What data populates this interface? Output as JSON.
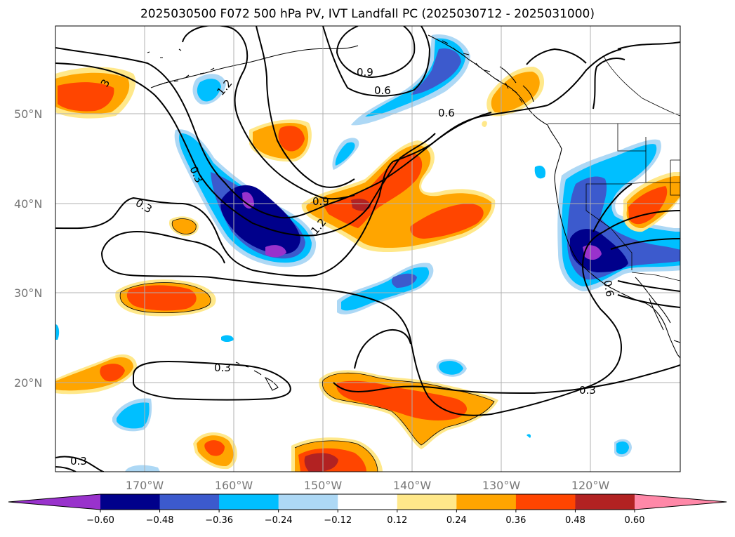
{
  "title": "2025030500 F072 500 hPa PV, IVT Landfall PC (2025030712 - 2025031000)",
  "map": {
    "lat_ticks": [
      "50°N",
      "40°N",
      "30°N",
      "20°N"
    ],
    "lon_ticks": [
      "170°W",
      "160°W",
      "150°W",
      "140°W",
      "130°W",
      "120°W"
    ],
    "grid": true
  },
  "contour_labels": {
    "a": "0.3",
    "b": "0.3",
    "c": "1.2",
    "d": "0.9",
    "e": "0.6",
    "f": "0.6",
    "g": "0.9",
    "h": "1.2",
    "i": "0.3",
    "j": "0.3",
    "k": "0.3",
    "l": "0.6",
    "m": "3"
  },
  "colorbar": {
    "ticks": [
      "−0.60",
      "−0.48",
      "−0.36",
      "−0.24",
      "−0.12",
      "0.12",
      "0.24",
      "0.36",
      "0.48",
      "0.60"
    ],
    "colors": [
      "#9932cc",
      "#00008b",
      "#3c5acd",
      "#00bfff",
      "#add8f5",
      "#ffffff",
      "#ffe88a",
      "#ffa500",
      "#ff4500",
      "#b22222",
      "#ff88a8"
    ]
  }
}
